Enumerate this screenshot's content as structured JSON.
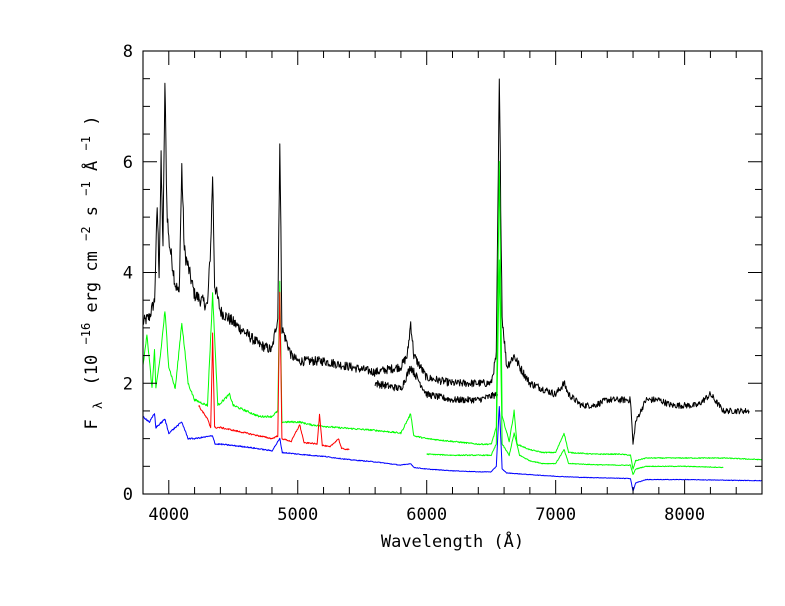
{
  "chart_data": {
    "type": "line",
    "title": "",
    "xlabel": "Wavelength (Å)",
    "ylabel": {
      "main": "F",
      "sub": "λ",
      "pre_units": "(10",
      "exp1": "−16",
      "mid1": " erg cm",
      "exp2": "−2",
      "mid2": " s",
      "exp3": "−1",
      "mid3": " Å",
      "exp4": "−1",
      "post_units": ")"
    },
    "xlim": [
      3800,
      8600
    ],
    "ylim": [
      0,
      8
    ],
    "xticks": [
      4000,
      5000,
      6000,
      7000,
      8000
    ],
    "yticks": [
      0,
      2,
      4,
      6,
      8
    ],
    "xtick_labels": [
      "4000",
      "5000",
      "6000",
      "7000",
      "8000"
    ],
    "ytick_labels": [
      "0",
      "2",
      "4",
      "6",
      "8"
    ],
    "series": [
      {
        "name": "black spectrum (upper)",
        "color": "#000000",
        "x": [
          3800,
          3850,
          3890,
          3910,
          3925,
          3940,
          3955,
          3970,
          3985,
          4000,
          4050,
          4080,
          4101,
          4120,
          4200,
          4300,
          4325,
          4340,
          4355,
          4400,
          4450,
          4500,
          4600,
          4700,
          4800,
          4845,
          4861,
          4877,
          4950,
          5000,
          5200,
          5400,
          5600,
          5800,
          5850,
          5876,
          5900,
          6000,
          6200,
          6400,
          6500,
          6540,
          6563,
          6585,
          6620,
          6678,
          6720,
          6800,
          6900,
          7000,
          7065,
          7100,
          7200,
          7300,
          7400,
          7500,
          7580,
          7600,
          7620,
          7700,
          7800,
          7900,
          8000,
          8100,
          8200,
          8300,
          8400,
          8500
        ],
        "y": [
          3.1,
          3.2,
          3.5,
          5.2,
          4.0,
          6.0,
          4.5,
          7.4,
          5.2,
          4.6,
          3.8,
          3.6,
          5.9,
          4.4,
          3.6,
          3.4,
          4.5,
          5.8,
          3.8,
          3.3,
          3.2,
          3.1,
          2.9,
          2.7,
          2.6,
          3.2,
          6.4,
          3.0,
          2.5,
          2.4,
          2.4,
          2.3,
          2.2,
          2.3,
          2.5,
          3.1,
          2.5,
          2.1,
          2.0,
          2.0,
          2.0,
          2.5,
          7.4,
          3.2,
          2.3,
          2.5,
          2.3,
          2.0,
          1.9,
          1.8,
          2.0,
          1.8,
          1.6,
          1.6,
          1.7,
          1.7,
          1.7,
          0.9,
          1.3,
          1.7,
          1.7,
          1.6,
          1.6,
          1.6,
          1.8,
          1.5,
          1.5,
          1.5
        ]
      },
      {
        "name": "black spectrum (lower branch)",
        "color": "#000000",
        "x": [
          5600,
          5800,
          5876,
          6000,
          6200,
          6400,
          6550
        ],
        "y": [
          2.0,
          1.9,
          2.3,
          1.8,
          1.7,
          1.7,
          1.8
        ]
      },
      {
        "name": "green spectrum (upper)",
        "color": "#00ff00",
        "x": [
          3800,
          3830,
          3870,
          3889,
          3900,
          3935,
          3970,
          4000,
          4050,
          4101,
          4150,
          4200,
          4300,
          4340,
          4380,
          4471,
          4500,
          4600,
          4700,
          4800,
          4845,
          4861,
          4877,
          4950,
          5015,
          5100,
          5300,
          5600,
          5800,
          5876,
          5900,
          6000,
          6200,
          6400,
          6500,
          6540,
          6563,
          6585,
          6640,
          6678,
          6700,
          6800,
          6900,
          7000,
          7065,
          7100,
          7300,
          7500,
          7580,
          7600,
          7620,
          7700,
          8000,
          8300,
          8600
        ],
        "y": [
          2.3,
          2.9,
          1.9,
          2.6,
          1.9,
          2.5,
          3.3,
          2.3,
          1.9,
          3.1,
          2.0,
          1.7,
          1.6,
          3.6,
          1.6,
          1.8,
          1.6,
          1.5,
          1.4,
          1.4,
          1.5,
          3.8,
          1.3,
          1.3,
          1.3,
          1.25,
          1.2,
          1.15,
          1.1,
          1.45,
          1.05,
          1.0,
          0.95,
          0.9,
          0.9,
          1.2,
          6.0,
          1.4,
          0.95,
          1.5,
          0.9,
          0.8,
          0.75,
          0.75,
          1.1,
          0.75,
          0.72,
          0.72,
          0.7,
          0.45,
          0.6,
          0.65,
          0.65,
          0.65,
          0.62
        ]
      },
      {
        "name": "green spectrum (lower)",
        "color": "#00ff00",
        "x": [
          6000,
          6200,
          6400,
          6500,
          6540,
          6563,
          6585,
          6640,
          6678,
          6720,
          6800,
          6900,
          7000,
          7065,
          7100,
          7300,
          7500,
          7580,
          7600,
          7620,
          7700,
          8000,
          8300
        ],
        "y": [
          0.72,
          0.7,
          0.7,
          0.7,
          0.9,
          4.2,
          0.9,
          0.7,
          1.1,
          0.7,
          0.6,
          0.55,
          0.55,
          0.8,
          0.55,
          0.53,
          0.52,
          0.52,
          0.35,
          0.45,
          0.5,
          0.5,
          0.48
        ]
      },
      {
        "name": "red spectrum",
        "color": "#ff0000",
        "x": [
          4230,
          4300,
          4325,
          4340,
          4355,
          4400,
          4500,
          4600,
          4700,
          4800,
          4845,
          4861,
          4877,
          4950,
          5015,
          5050,
          5100,
          5150,
          5169,
          5190,
          5250,
          5316,
          5340,
          5400
        ],
        "y": [
          1.6,
          1.35,
          1.2,
          2.9,
          1.2,
          1.2,
          1.15,
          1.1,
          1.05,
          1.0,
          1.05,
          3.6,
          1.0,
          0.95,
          1.25,
          0.92,
          0.92,
          0.9,
          1.45,
          0.88,
          0.85,
          1.0,
          0.82,
          0.8
        ]
      },
      {
        "name": "blue spectrum",
        "color": "#0000ff",
        "x": [
          3800,
          3850,
          3889,
          3900,
          3970,
          4000,
          4101,
          4150,
          4200,
          4340,
          4360,
          4400,
          4600,
          4800,
          4861,
          4880,
          5000,
          5200,
          5400,
          5600,
          5800,
          5876,
          5900,
          6000,
          6200,
          6400,
          6500,
          6540,
          6563,
          6585,
          6620,
          6800,
          7000,
          7200,
          7400,
          7580,
          7600,
          7620,
          7700,
          8000,
          8300,
          8600
        ],
        "y": [
          1.4,
          1.3,
          1.45,
          1.2,
          1.35,
          1.1,
          1.3,
          1.0,
          1.0,
          1.05,
          0.9,
          0.9,
          0.85,
          0.78,
          1.0,
          0.75,
          0.72,
          0.68,
          0.62,
          0.58,
          0.52,
          0.55,
          0.48,
          0.45,
          0.42,
          0.4,
          0.4,
          0.5,
          1.6,
          0.45,
          0.38,
          0.35,
          0.32,
          0.3,
          0.29,
          0.28,
          0.05,
          0.2,
          0.26,
          0.26,
          0.25,
          0.24
        ]
      }
    ]
  }
}
